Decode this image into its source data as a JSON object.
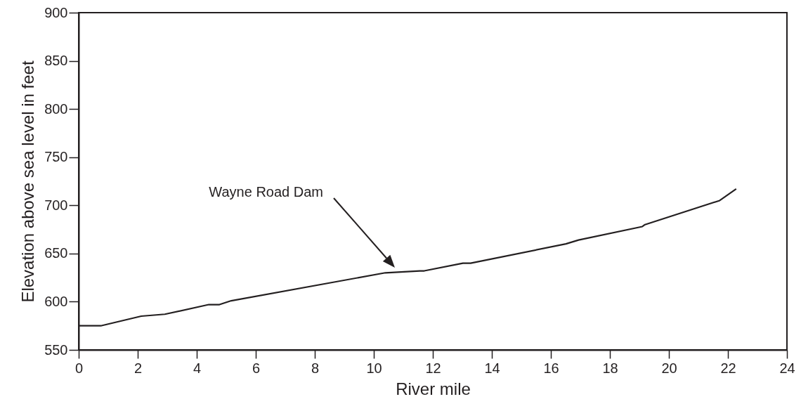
{
  "chart_data": {
    "type": "line",
    "xlabel": "River mile",
    "ylabel": "Elevation above sea level in feet",
    "x": [
      0,
      0.75,
      2.12,
      2.92,
      4.41,
      4.77,
      5.17,
      10.39,
      11.56,
      11.71,
      13.02,
      13.28,
      16.51,
      16.94,
      19.1,
      19.19,
      21.72,
      22.28
    ],
    "series": [
      {
        "color": "#231f20",
        "values": [
          575,
          575,
          585,
          587,
          597,
          597,
          601,
          630,
          632,
          632,
          640,
          640,
          660,
          664,
          678,
          680,
          705,
          717
        ]
      }
    ],
    "xlim": [
      0,
      24
    ],
    "ylim": [
      550,
      900
    ],
    "xticks": [
      0,
      2,
      4,
      6,
      8,
      10,
      12,
      14,
      16,
      18,
      20,
      22,
      24
    ],
    "yticks": [
      550,
      600,
      650,
      700,
      750,
      800,
      850,
      900
    ],
    "grid": false,
    "annotations": [
      "Wayne Road Dam"
    ]
  }
}
